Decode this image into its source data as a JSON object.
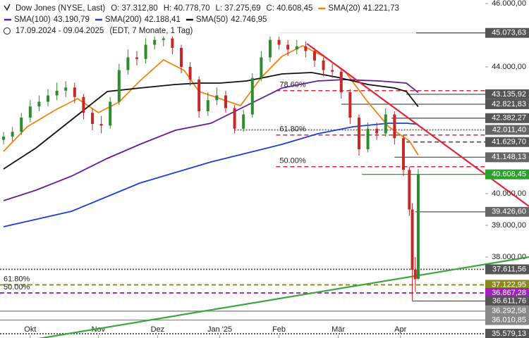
{
  "chart_data": {
    "type": "candlestick",
    "header": [
      "Dow Jones (NYSE, Last)",
      "O: 37.312,80",
      "H: 40.778,70",
      "L: 37.275,69",
      "C: 40.608,45"
    ],
    "period": "17.09.2024 - 09.04.2025",
    "period_note": "(EDT, 7 Monate, 1 Tag)",
    "xlim": [
      -1.2,
      177.4
    ],
    "ylim": [
      35444.4,
      46111.1
    ],
    "xticks": [
      {
        "value": 9,
        "label": "Okt"
      },
      {
        "value": 32,
        "label": "Nov"
      },
      {
        "value": 52,
        "label": "Dez"
      },
      {
        "value": 73,
        "label": "Jan '25"
      },
      {
        "value": 93,
        "label": "Feb"
      },
      {
        "value": 113,
        "label": "Mär"
      },
      {
        "value": 134,
        "label": "Apr"
      }
    ],
    "yticks": [
      {
        "value": 46000,
        "label": "46.000,00"
      },
      {
        "value": 44000,
        "label": "44.000,00"
      },
      {
        "value": 40000,
        "label": "40.000,00"
      },
      {
        "value": 39000,
        "label": "39.000,00"
      },
      {
        "value": 38000,
        "label": "38.000,00"
      }
    ],
    "up_color": "#2e8b2e",
    "down_color": "#c62828",
    "x": [
      0,
      3,
      6,
      9,
      12,
      15,
      18,
      21,
      24,
      27,
      30,
      33,
      36,
      39,
      42,
      45,
      48,
      51,
      54,
      57,
      60,
      63,
      66,
      69,
      72,
      75,
      78,
      81,
      84,
      87,
      90,
      93,
      96,
      99,
      102,
      105,
      108,
      111,
      114,
      117,
      120,
      123,
      126,
      129,
      132,
      135,
      137,
      138,
      139,
      140
    ],
    "open": [
      41700,
      41800,
      41950,
      42400,
      42750,
      42900,
      43100,
      43250,
      43350,
      43050,
      42550,
      42200,
      42150,
      42900,
      43900,
      44300,
      44250,
      44700,
      44850,
      44900,
      44600,
      44000,
      43600,
      42600,
      42950,
      43100,
      42700,
      42050,
      42500,
      43650,
      44300,
      44850,
      44700,
      44550,
      44650,
      44500,
      44200,
      43900,
      43850,
      43200,
      42400,
      41400,
      42050,
      41900,
      42500,
      41750,
      40750,
      39500,
      37600,
      37312.8
    ],
    "high": [
      41950,
      42100,
      42550,
      42950,
      43100,
      43300,
      43500,
      43550,
      43500,
      43150,
      42700,
      42450,
      43050,
      44100,
      44550,
      44500,
      44900,
      45050,
      45100,
      45000,
      44700,
      44150,
      43700,
      43200,
      43350,
      43250,
      42800,
      42650,
      43800,
      44500,
      45050,
      45050,
      44850,
      44850,
      44800,
      44600,
      44300,
      44100,
      43950,
      43300,
      42500,
      42250,
      42250,
      42700,
      42600,
      41850,
      40850,
      39700,
      38000,
      40778.7
    ],
    "low": [
      41550,
      41650,
      41850,
      42250,
      42600,
      42750,
      42950,
      43050,
      42850,
      42350,
      42000,
      41900,
      42050,
      42800,
      43750,
      44050,
      44100,
      44550,
      44650,
      44400,
      43800,
      43400,
      42400,
      42450,
      42800,
      42550,
      41900,
      41950,
      42400,
      43550,
      44150,
      44550,
      44350,
      44400,
      44300,
      44000,
      43700,
      43650,
      43000,
      42200,
      41200,
      41300,
      41700,
      41800,
      41550,
      40550,
      39300,
      36611.76,
      36900,
      37275.69
    ],
    "close": [
      41800,
      41950,
      42400,
      42750,
      42900,
      43100,
      43250,
      43350,
      43050,
      42550,
      42200,
      42150,
      42900,
      43900,
      44300,
      44250,
      44700,
      44850,
      44900,
      44600,
      44000,
      43600,
      42600,
      42950,
      43100,
      42700,
      42050,
      42500,
      43650,
      44300,
      44850,
      44700,
      44550,
      44650,
      44500,
      44200,
      43900,
      43850,
      43200,
      42400,
      41400,
      42050,
      41900,
      42500,
      41750,
      40750,
      39500,
      37600,
      37300,
      40608.45
    ],
    "series": [
      {
        "name": "SMA(20)",
        "value_label": "41.221,73",
        "color": "#f5820f",
        "x": [
          0,
          8,
          18,
          25,
          32,
          39,
          46,
          54,
          61,
          66,
          73,
          80,
          87,
          94,
          101,
          108,
          115,
          123,
          130,
          137,
          140
        ],
        "values": [
          41333,
          42111,
          42667,
          43000,
          42556,
          42889,
          43556,
          44222,
          43889,
          43222,
          43000,
          42778,
          43667,
          44333,
          44667,
          44333,
          43889,
          42889,
          42111,
          41667,
          41221.73
        ]
      },
      {
        "name": "SMA(100)",
        "value_label": "43.190,79",
        "color": "#6a1b9a",
        "x": [
          0,
          11,
          23,
          35,
          46,
          58,
          70,
          82,
          94,
          106,
          115,
          127,
          136,
          140
        ],
        "values": [
          39778,
          40111,
          40556,
          41111,
          41556,
          42000,
          42222,
          42778,
          43333,
          43556,
          43600,
          43556,
          43489,
          43190.79
        ]
      },
      {
        "name": "SMA(200)",
        "value_label": "42.188,41",
        "color": "#1c3fd6",
        "x": [
          0,
          23,
          46,
          70,
          94,
          106,
          118,
          130,
          136,
          140
        ],
        "values": [
          38956,
          39444,
          40333,
          41000,
          41556,
          41889,
          42111,
          42222,
          42222,
          42188.41
        ]
      },
      {
        "name": "SMA(50)",
        "value_label": "42.746,95",
        "color": "#111111",
        "x": [
          0,
          11,
          23,
          35,
          46,
          58,
          66,
          73,
          82,
          94,
          104,
          113,
          123,
          132,
          136,
          140
        ],
        "values": [
          40778,
          41444,
          42333,
          43222,
          43333,
          43444,
          43489,
          43489,
          43556,
          43778,
          43822,
          43667,
          43444,
          43333,
          43222,
          42746.95
        ]
      }
    ],
    "trendlines": [
      {
        "color": "#e0263a",
        "x": [
          102.4,
          177.4
        ],
        "values": [
          44733,
          39600
        ]
      },
      {
        "color": "#3fa63f",
        "x": [
          -1.2,
          177.4
        ],
        "values": [
          35222,
          38000
        ]
      }
    ],
    "fib_levels": [
      {
        "label": "78.60%",
        "value": 43250,
        "color": "#e0263a",
        "from": 92
      },
      {
        "label": "61.80%",
        "value": 41850,
        "color": "#e0263a",
        "from": 92
      },
      {
        "label": "50.00%",
        "value": 40850,
        "color": "#e0263a",
        "from": 92
      },
      {
        "label": "61.80%",
        "value": 37122.95,
        "color": "#8a8a1a",
        "from": -1.2
      },
      {
        "label": "50.00%",
        "value": 36867.28,
        "color": "#a020c0",
        "from": -1.2
      }
    ],
    "levels": [
      {
        "value": 45073.63,
        "label": "45.073,63",
        "style": "solid",
        "color": "#555555",
        "from": 93
      },
      {
        "value": 43135.92,
        "label": "43.135,92",
        "style": "solid",
        "color": "#555555",
        "from": 136
      },
      {
        "value": 42821.83,
        "label": "42.821,83",
        "style": "solid",
        "color": "#555555",
        "from": 114
      },
      {
        "value": 42382.27,
        "label": "42.382,27",
        "style": "solid",
        "color": "#555555",
        "from": 131
      },
      {
        "value": 42011.4,
        "label": "42.011,40",
        "style": "dotted",
        "color": "#666666",
        "from": 78
      },
      {
        "value": 41629.7,
        "label": "41.629,70",
        "style": "dashed",
        "color": "#555555",
        "from": 136
      },
      {
        "value": 41148.13,
        "label": "41.148,13",
        "style": "solid",
        "color": "#666666",
        "from": 132
      },
      {
        "value": 40608.45,
        "label": "40.608,45",
        "style": "solid",
        "color": "#2e9e2e",
        "from": 121
      },
      {
        "value": 39426.6,
        "label": "39.426,60",
        "style": "solid",
        "color": "#666666",
        "from": 139
      },
      {
        "value": 37611.56,
        "label": "37.611,56",
        "style": "dotted",
        "color": "#555555",
        "from": -1.2
      },
      {
        "value": 37122.95,
        "label": "37.122,95",
        "style": "dashed",
        "color": "#8a8a1a",
        "from": -1.2
      },
      {
        "value": 36867.28,
        "label": "36.867,28",
        "style": "dashed",
        "color": "#a020c0",
        "from": -1.2
      },
      {
        "value": 36611.76,
        "label": "36.611,76",
        "style": "solid",
        "color": "#555555",
        "from": 138
      },
      {
        "value": 36292.58,
        "label": "36.292,58",
        "style": "solid",
        "color": "#888888",
        "from": -1.2
      },
      {
        "value": 36010.85,
        "label": "36.010,85",
        "style": "solid",
        "color": "#888888",
        "from": -1.2
      },
      {
        "value": 35579.13,
        "label": "35.579,13",
        "style": "dotted",
        "color": "#555555",
        "from": -1.2
      }
    ]
  }
}
